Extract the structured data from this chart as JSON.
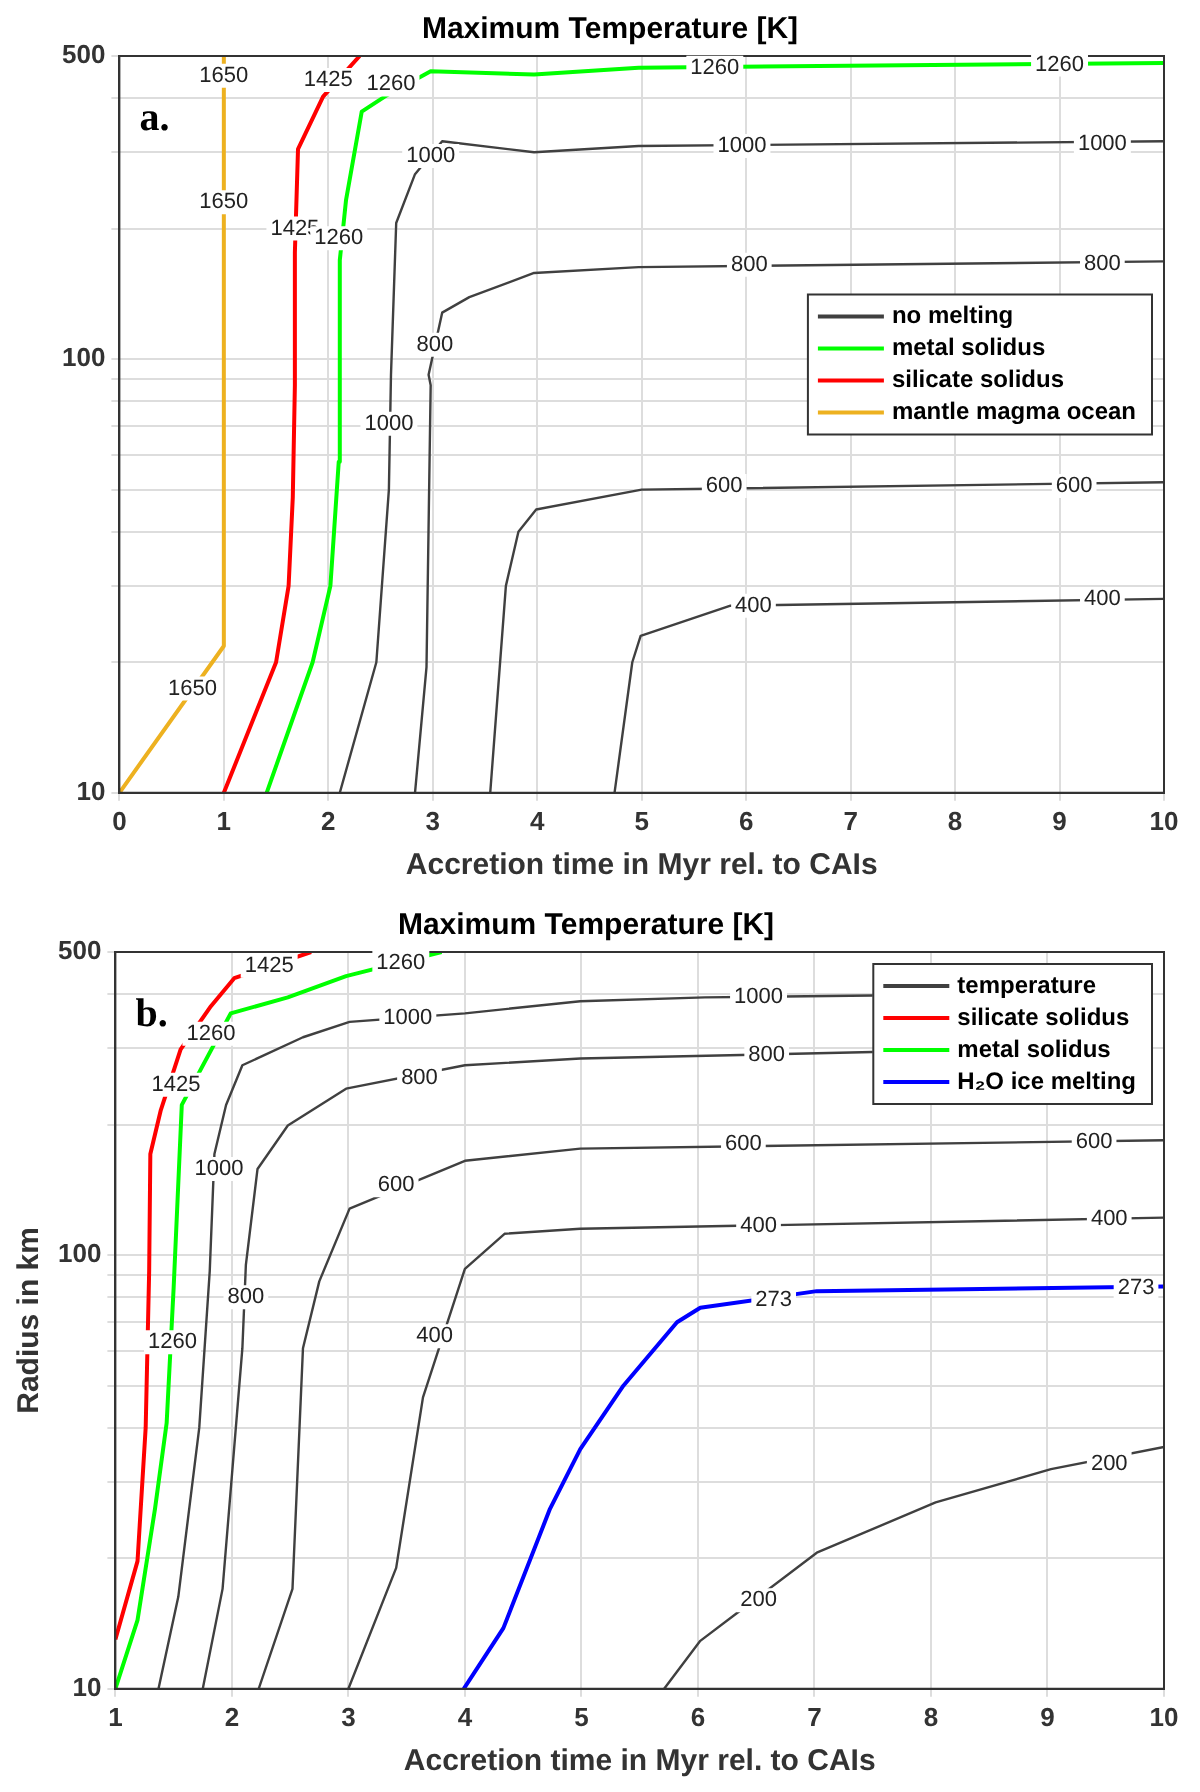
{
  "chart_data": [
    {
      "type": "line",
      "title": "Maximum Temperature [K]",
      "xlabel": "Accretion time in Myr rel. to CAIs",
      "xlim": [
        0,
        10
      ],
      "xticks": [
        0,
        1,
        2,
        3,
        4,
        5,
        6,
        7,
        8,
        9,
        10
      ],
      "ylim": [
        10,
        500
      ],
      "yticks": [
        10,
        {
          "value": 20,
          "label": null
        },
        {
          "value": 30,
          "label": null
        },
        {
          "value": 40,
          "label": null
        },
        {
          "value": 50,
          "label": null
        },
        {
          "value": 60,
          "label": null
        },
        {
          "value": 70,
          "label": null
        },
        {
          "value": 80,
          "label": null
        },
        {
          "value": 90,
          "label": null
        },
        100,
        {
          "value": 200,
          "label": null
        },
        {
          "value": 300,
          "label": null
        },
        {
          "value": 400,
          "label": null
        },
        500
      ],
      "log": "y",
      "grid": true,
      "legend": "right",
      "marker": "none",
      "line_style": "solid",
      "series": [
        {
          "name": "no melting",
          "color": "#404040",
          "x": [
            2.11,
            2.46,
            2.58,
            2.6,
            2.65,
            2.83,
            3.09,
            3.97,
            4.97,
            10,
            null,
            2.83,
            2.94,
            2.98,
            2.96,
            3.09,
            3.35,
            3.97,
            4.97,
            10,
            null,
            3.55,
            3.7,
            3.82,
            3.99,
            5.0,
            10,
            null,
            4.74,
            4.91,
            4.99,
            5.85,
            10
          ],
          "values": [
            10,
            20,
            50,
            92,
            206,
            267,
            318,
            300,
            310,
            318,
            null,
            10,
            19.5,
            87,
            92,
            128,
            139,
            158,
            163,
            168,
            null,
            10,
            30,
            40,
            45,
            50,
            52,
            null,
            10,
            20,
            23,
            27,
            28
          ]
        },
        {
          "name": "metal solidus",
          "color": "#00ff00",
          "x": [
            1.41,
            1.85,
            2.02,
            2.1,
            2.11,
            2.17,
            2.32,
            2.54,
            2.98,
            3.97,
            4.97,
            10
          ],
          "values": [
            10,
            20,
            30,
            58,
            169,
            233,
            372,
            403,
            461,
            453,
            470,
            482
          ]
        },
        {
          "name": "silicate solidus",
          "color": "#ff0000",
          "x": [
            1,
            1.5,
            1.62,
            1.66,
            1.68,
            1.68,
            1.71,
            1.95,
            2.3
          ],
          "values": [
            10,
            20,
            30,
            48,
            87,
            176,
            305,
            403,
            500
          ]
        },
        {
          "name": "mantle magma ocean",
          "color": "#edb120",
          "x": [
            0,
            1,
            1
          ],
          "values": [
            10,
            21.8,
            500
          ]
        }
      ],
      "annotations": [
        "a.",
        {
          "text": "1650",
          "x": 1,
          "y": 450
        },
        {
          "text": "1650",
          "x": 1,
          "y": 230
        },
        {
          "text": "1650",
          "x": 0.7,
          "y": 17.4
        },
        {
          "text": "1425",
          "x": 1.68,
          "y": 200
        },
        {
          "text": "1425",
          "x": 2.0,
          "y": 440
        },
        {
          "text": "1260",
          "x": 2.1,
          "y": 190
        },
        {
          "text": "1260",
          "x": 2.6,
          "y": 430
        },
        {
          "text": "1260",
          "x": 5.7,
          "y": 470
        },
        {
          "text": "1260",
          "x": 9.0,
          "y": 478
        },
        {
          "text": "1000",
          "x": 2.58,
          "y": 71
        },
        {
          "text": "1000",
          "x": 2.98,
          "y": 294
        },
        {
          "text": "1000",
          "x": 5.96,
          "y": 310
        },
        {
          "text": "1000",
          "x": 9.41,
          "y": 314
        },
        {
          "text": "800",
          "x": 3.02,
          "y": 108
        },
        {
          "text": "800",
          "x": 6.03,
          "y": 165
        },
        {
          "text": "800",
          "x": 9.41,
          "y": 166
        },
        {
          "text": "600",
          "x": 5.79,
          "y": 51
        },
        {
          "text": "600",
          "x": 9.14,
          "y": 51
        },
        {
          "text": "400",
          "x": 6.07,
          "y": 27
        },
        {
          "text": "400",
          "x": 9.41,
          "y": 28
        }
      ]
    },
    {
      "type": "line",
      "title": "Maximum Temperature [K]",
      "xlabel": "Accretion time in Myr rel. to CAIs",
      "ylabel": "Radius in km",
      "xlim": [
        1,
        10
      ],
      "xticks": [
        1,
        2,
        3,
        4,
        5,
        6,
        7,
        8,
        9,
        10
      ],
      "ylim": [
        10,
        500
      ],
      "yticks": [
        10,
        {
          "value": 20,
          "label": null
        },
        {
          "value": 30,
          "label": null
        },
        {
          "value": 40,
          "label": null
        },
        {
          "value": 50,
          "label": null
        },
        {
          "value": 60,
          "label": null
        },
        {
          "value": 70,
          "label": null
        },
        {
          "value": 80,
          "label": null
        },
        {
          "value": 90,
          "label": null
        },
        100,
        {
          "value": 200,
          "label": null
        },
        {
          "value": 300,
          "label": null
        },
        {
          "value": 400,
          "label": null
        },
        500
      ],
      "log": "y",
      "grid": true,
      "legend": "top right",
      "marker": "none",
      "line_style": "solid",
      "series": [
        {
          "name": "temperature",
          "color": "#404040",
          "x": [
            1.37,
            1.54,
            1.72,
            1.81,
            1.85,
            1.95,
            2.09,
            2.61,
            3.01,
            4.0,
            4.99,
            6.06,
            7.5,
            null,
            1.75,
            1.92,
            2.09,
            2.12,
            2.22,
            2.48,
            2.98,
            4.0,
            4.99,
            7.5,
            null,
            2.23,
            2.52,
            2.61,
            2.75,
            3.01,
            4.0,
            4.99,
            10,
            null,
            3.0,
            3.41,
            3.64,
            4.0,
            4.34,
            4.99,
            10,
            null,
            5.71,
            6.02,
            7.02,
            8.04,
            9.03,
            10
          ],
          "values": [
            10,
            16.3,
            40,
            92,
            171,
            222,
            274,
            318,
            345,
            361,
            385,
            393,
            397,
            null,
            10,
            17,
            61,
            95,
            158,
            199,
            242,
            274,
            284,
            294,
            null,
            10,
            17,
            61,
            87,
            128,
            165,
            176,
            184,
            null,
            10,
            19,
            47,
            93,
            112,
            115,
            122,
            null,
            10,
            12.9,
            20.6,
            26.9,
            32.1,
            36.1
          ]
        },
        {
          "name": "silicate solidus",
          "color": "#ff0000",
          "x": [
            1,
            1.19,
            1.26,
            1.29,
            1.3,
            1.39,
            1.56,
            1.82,
            2.02,
            2.68
          ],
          "values": [
            13,
            19.7,
            40,
            92,
            171,
            216,
            298,
            375,
            435,
            500
          ]
        },
        {
          "name": "metal solidus",
          "color": "#00ff00",
          "x": [
            1,
            1.19,
            1.34,
            1.44,
            1.5,
            1.57,
            1.99,
            2.48,
            2.98,
            3.8
          ],
          "values": [
            10,
            14.4,
            26,
            41,
            84,
            222,
            361,
            393,
            440,
            500
          ]
        },
        {
          "name": "H₂O ice melting",
          "color": "#0000ff",
          "x": [
            3.99,
            4.33,
            4.73,
            4.99,
            5.36,
            5.82,
            6.02,
            7.02,
            10
          ],
          "values": [
            10,
            13.8,
            26,
            35.7,
            50,
            70,
            75.6,
            82.6,
            84.6
          ]
        }
      ],
      "annotations": [
        "b.",
        {
          "text": "1425",
          "x": 1.52,
          "y": 247
        },
        {
          "text": "1425",
          "x": 2.32,
          "y": 465
        },
        {
          "text": "1260",
          "x": 1.49,
          "y": 63
        },
        {
          "text": "1260",
          "x": 1.82,
          "y": 324
        },
        {
          "text": "1260",
          "x": 3.45,
          "y": 472
        },
        {
          "text": "1000",
          "x": 1.89,
          "y": 158
        },
        {
          "text": "1000",
          "x": 3.51,
          "y": 353
        },
        {
          "text": "1000",
          "x": 6.52,
          "y": 393
        },
        {
          "text": "800",
          "x": 2.12,
          "y": 80
        },
        {
          "text": "800",
          "x": 3.61,
          "y": 256
        },
        {
          "text": "800",
          "x": 6.59,
          "y": 290
        },
        {
          "text": "600",
          "x": 3.41,
          "y": 145
        },
        {
          "text": "600",
          "x": 6.39,
          "y": 180
        },
        {
          "text": "600",
          "x": 9.4,
          "y": 182
        },
        {
          "text": "400",
          "x": 3.74,
          "y": 65
        },
        {
          "text": "400",
          "x": 6.52,
          "y": 117
        },
        {
          "text": "400",
          "x": 9.53,
          "y": 121
        },
        {
          "text": "273",
          "x": 6.65,
          "y": 79
        },
        {
          "text": "273",
          "x": 9.76,
          "y": 84
        },
        {
          "text": "200",
          "x": 6.52,
          "y": 16
        },
        {
          "text": "200",
          "x": 9.53,
          "y": 33
        }
      ]
    }
  ]
}
